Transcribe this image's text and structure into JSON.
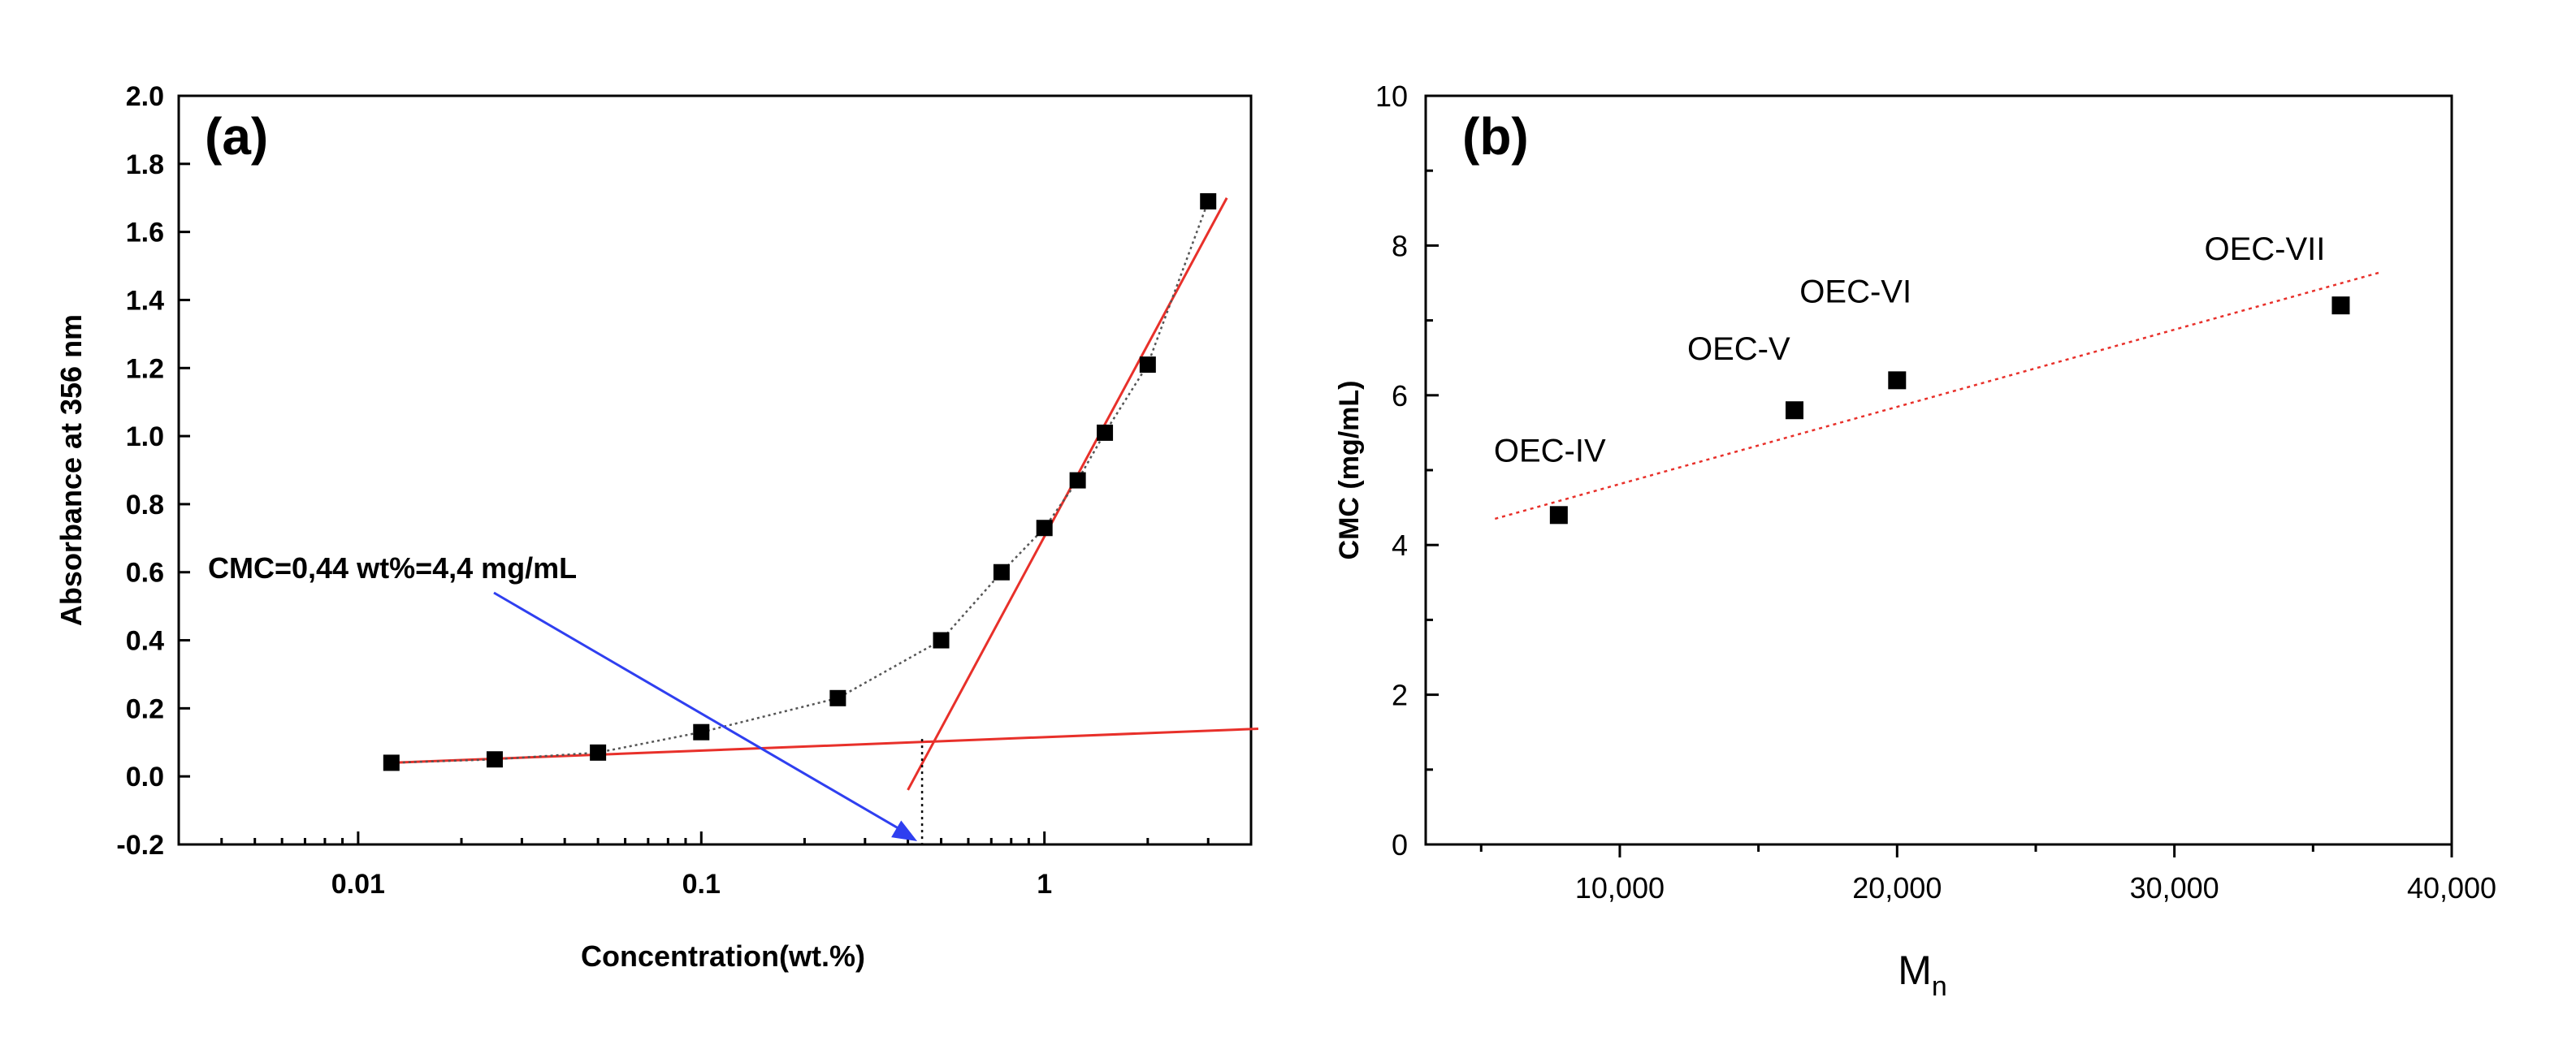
{
  "chart_data": [
    {
      "panel_label": "(a)",
      "type": "scatter",
      "xscale": "log",
      "xlabel": "Concentration(wt.%)",
      "ylabel": "Absorbance at 356 nm",
      "xlim": [
        0.003,
        4
      ],
      "ylim": [
        -0.2,
        2.0
      ],
      "x_tick_labels": [
        "0.01",
        "0.1",
        "1"
      ],
      "x_ticks": [
        0.01,
        0.1,
        1
      ],
      "y_ticks": [
        -0.2,
        0.0,
        0.2,
        0.4,
        0.6,
        0.8,
        1.0,
        1.2,
        1.4,
        1.6,
        1.8,
        2.0
      ],
      "y_tick_labels": [
        "-0.2",
        "0.0",
        "0.2",
        "0.4",
        "0.6",
        "0.8",
        "1.0",
        "1.2",
        "1.4",
        "1.6",
        "1.8",
        "2.0"
      ],
      "series": [
        {
          "name": "Absorbance",
          "marker": "square",
          "x": [
            0.0125,
            0.025,
            0.05,
            0.1,
            0.25,
            0.5,
            0.75,
            1.0,
            1.25,
            1.5,
            2.0,
            3.0
          ],
          "y": [
            0.04,
            0.05,
            0.07,
            0.13,
            0.23,
            0.4,
            0.6,
            0.73,
            0.87,
            1.01,
            1.21,
            1.69
          ]
        }
      ],
      "fit_lines": [
        {
          "name": "baseline fit",
          "color": "#e8302a",
          "x": [
            0.0125,
            4.2
          ],
          "y": [
            0.04,
            0.14
          ]
        },
        {
          "name": "steep fit",
          "color": "#e8302a",
          "x": [
            0.4,
            3.4
          ],
          "y": [
            -0.04,
            1.7
          ]
        }
      ],
      "annotation": {
        "text": "CMC=0,44 wt%=4,4 mg/mL",
        "arrow_color": "#2f3ff0",
        "cmc_x": 0.44,
        "intersection_y": 0.11
      }
    },
    {
      "panel_label": "(b)",
      "type": "scatter",
      "xlabel": "M",
      "xlabel_subscript": "n",
      "ylabel": "CMC (mg/mL)",
      "xlim": [
        3000,
        40000
      ],
      "ylim": [
        0,
        10
      ],
      "x_ticks": [
        10000,
        20000,
        30000,
        40000
      ],
      "x_tick_labels": [
        "10,000",
        "20,000",
        "30,000",
        "40,000"
      ],
      "x_minor_ticks": [
        5000,
        15000,
        25000,
        35000
      ],
      "y_ticks": [
        0,
        2,
        4,
        6,
        8,
        10
      ],
      "y_tick_labels": [
        "0",
        "2",
        "4",
        "6",
        "8",
        "10"
      ],
      "series": [
        {
          "name": "CMC",
          "marker": "square",
          "x": [
            7800,
            16300,
            20000,
            36000
          ],
          "y": [
            4.4,
            5.8,
            6.2,
            7.2
          ],
          "labels": [
            "OEC-IV",
            "OEC-V",
            "OEC-VI",
            "OEC-VII"
          ]
        }
      ],
      "fit_line": {
        "name": "linear fit",
        "color": "#e8302a",
        "x": [
          5500,
          37500
        ],
        "y": [
          4.35,
          7.65
        ]
      }
    }
  ]
}
